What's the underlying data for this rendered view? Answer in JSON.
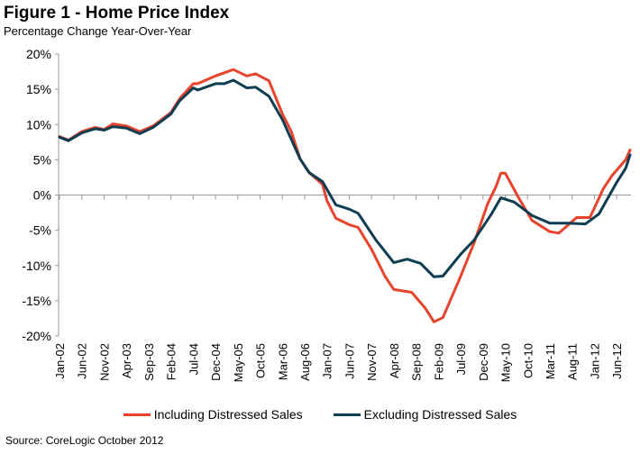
{
  "chart_data": {
    "type": "line",
    "title": "Figure 1 - Home Price Index",
    "subtitle": "Percentage Change Year-Over-Year",
    "source": "Source: CoreLogic October 2012",
    "ylim": [
      -20,
      20
    ],
    "yticks": [
      "20%",
      "15%",
      "10%",
      "5%",
      "0%",
      "-5%",
      "-10%",
      "-15%",
      "-20%"
    ],
    "ytick_values": [
      20,
      15,
      10,
      5,
      0,
      -5,
      -10,
      -15,
      -20
    ],
    "xlim": [
      "2002-01",
      "2012-09"
    ],
    "xtick_labels": [
      "Jan-02",
      "Jun-02",
      "Nov-02",
      "Apr-03",
      "Sep-03",
      "Feb-04",
      "Jul-04",
      "Dec-04",
      "May-05",
      "Oct-05",
      "Mar-06",
      "Aug-06",
      "Jan-07",
      "Jun-07",
      "Nov-07",
      "Apr-08",
      "Sep-08",
      "Feb-09",
      "Jul-09",
      "Dec-09",
      "May-10",
      "Oct-10",
      "Mar-11",
      "Aug-11",
      "Jan-12",
      "Jun-12"
    ],
    "grid": false,
    "legend": "bottom",
    "series": [
      {
        "name": "Including Distressed Sales",
        "color": "#e8432d",
        "points": [
          [
            "2002-01",
            8.3
          ],
          [
            "2002-03",
            7.8
          ],
          [
            "2002-06",
            9.0
          ],
          [
            "2002-09",
            9.6
          ],
          [
            "2002-11",
            9.3
          ],
          [
            "2003-01",
            10.1
          ],
          [
            "2003-04",
            9.8
          ],
          [
            "2003-07",
            9.0
          ],
          [
            "2003-10",
            9.8
          ],
          [
            "2004-02",
            11.7
          ],
          [
            "2004-04",
            13.7
          ],
          [
            "2004-07",
            15.8
          ],
          [
            "2004-08",
            15.8
          ],
          [
            "2004-12",
            16.9
          ],
          [
            "2005-04",
            17.8
          ],
          [
            "2005-07",
            16.9
          ],
          [
            "2005-09",
            17.2
          ],
          [
            "2005-12",
            16.2
          ],
          [
            "2006-03",
            11.5
          ],
          [
            "2006-05",
            9.0
          ],
          [
            "2006-07",
            5.1
          ],
          [
            "2006-09",
            3.2
          ],
          [
            "2006-12",
            1.5
          ],
          [
            "2007-01",
            -0.8
          ],
          [
            "2007-03",
            -3.3
          ],
          [
            "2007-06",
            -4.2
          ],
          [
            "2007-08",
            -4.6
          ],
          [
            "2007-11",
            -7.7
          ],
          [
            "2008-02",
            -11.5
          ],
          [
            "2008-04",
            -13.4
          ],
          [
            "2008-08",
            -13.8
          ],
          [
            "2008-11",
            -16.0
          ],
          [
            "2009-01",
            -18.0
          ],
          [
            "2009-03",
            -17.4
          ],
          [
            "2009-07",
            -11.5
          ],
          [
            "2009-10",
            -6.8
          ],
          [
            "2010-01",
            -1.3
          ],
          [
            "2010-03",
            1.3
          ],
          [
            "2010-04",
            3.1
          ],
          [
            "2010-05",
            3.1
          ],
          [
            "2010-08",
            -0.4
          ],
          [
            "2010-11",
            -3.6
          ],
          [
            "2011-03",
            -5.2
          ],
          [
            "2011-05",
            -5.4
          ],
          [
            "2011-09",
            -3.2
          ],
          [
            "2011-12",
            -3.2
          ],
          [
            "2012-03",
            0.9
          ],
          [
            "2012-05",
            2.8
          ],
          [
            "2012-08",
            5.0
          ],
          [
            "2012-09",
            6.4
          ]
        ]
      },
      {
        "name": "Excluding Distressed Sales",
        "color": "#0d3d50",
        "points": [
          [
            "2002-01",
            8.2
          ],
          [
            "2002-03",
            7.7
          ],
          [
            "2002-06",
            8.8
          ],
          [
            "2002-09",
            9.4
          ],
          [
            "2002-11",
            9.2
          ],
          [
            "2003-01",
            9.7
          ],
          [
            "2003-04",
            9.5
          ],
          [
            "2003-07",
            8.7
          ],
          [
            "2003-10",
            9.6
          ],
          [
            "2004-02",
            11.5
          ],
          [
            "2004-04",
            13.4
          ],
          [
            "2004-07",
            15.2
          ],
          [
            "2004-08",
            14.9
          ],
          [
            "2004-12",
            15.8
          ],
          [
            "2005-02",
            15.8
          ],
          [
            "2005-04",
            16.3
          ],
          [
            "2005-07",
            15.2
          ],
          [
            "2005-09",
            15.3
          ],
          [
            "2005-12",
            14.0
          ],
          [
            "2006-03",
            10.7
          ],
          [
            "2006-07",
            5.1
          ],
          [
            "2006-09",
            3.2
          ],
          [
            "2006-12",
            1.9
          ],
          [
            "2007-03",
            -1.4
          ],
          [
            "2007-06",
            -2.0
          ],
          [
            "2007-08",
            -2.6
          ],
          [
            "2007-12",
            -6.4
          ],
          [
            "2008-04",
            -9.6
          ],
          [
            "2008-07",
            -9.1
          ],
          [
            "2008-10",
            -9.7
          ],
          [
            "2009-01",
            -11.6
          ],
          [
            "2009-03",
            -11.5
          ],
          [
            "2009-07",
            -8.4
          ],
          [
            "2009-10",
            -6.4
          ],
          [
            "2010-02",
            -2.6
          ],
          [
            "2010-04",
            -0.4
          ],
          [
            "2010-07",
            -1.0
          ],
          [
            "2010-11",
            -2.9
          ],
          [
            "2011-03",
            -4.0
          ],
          [
            "2011-07",
            -4.0
          ],
          [
            "2011-11",
            -4.1
          ],
          [
            "2012-02",
            -2.7
          ],
          [
            "2012-06",
            1.8
          ],
          [
            "2012-08",
            3.8
          ],
          [
            "2012-09",
            5.7
          ]
        ]
      }
    ]
  }
}
